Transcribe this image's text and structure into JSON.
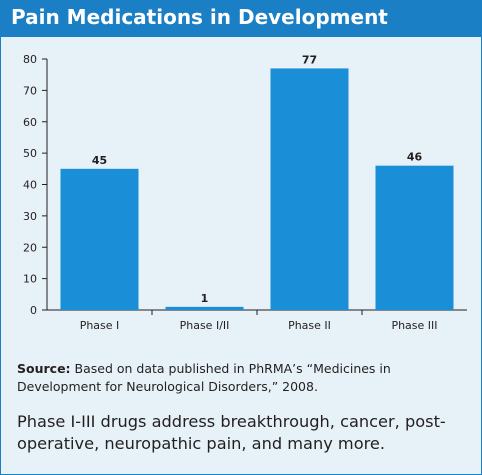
{
  "header": {
    "title": "Pain Medications in Development"
  },
  "chart_data": {
    "type": "bar",
    "title": "Pain Medications in Development",
    "categories": [
      "Phase I",
      "Phase I/II",
      "Phase II",
      "Phase III"
    ],
    "values": [
      45,
      1,
      77,
      46
    ],
    "data_labels": [
      "45",
      "1",
      "77",
      "46"
    ],
    "yticks": [
      "0",
      "10",
      "20",
      "30",
      "40",
      "50",
      "60",
      "70",
      "80"
    ],
    "ylim": [
      0,
      80
    ],
    "xlabel": "",
    "ylabel": "",
    "grid": false,
    "bar_color": "#1a8fd8"
  },
  "source": {
    "label": "Source:",
    "text": " Based on data published in PhRMA’s “Medicines in Development for Neurological Disorders,” 2008."
  },
  "caption": "Phase I-III drugs address breakthrough, cancer, post-operative, neuropathic pain, and many more.",
  "colors": {
    "brand": "#1a7fc4",
    "panel": "#e6f2f8",
    "bar": "#1a8fd8"
  }
}
